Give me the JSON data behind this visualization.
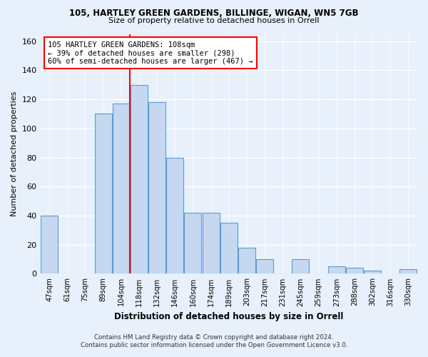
{
  "title1": "105, HARTLEY GREEN GARDENS, BILLINGE, WIGAN, WN5 7GB",
  "title2": "Size of property relative to detached houses in Orrell",
  "xlabel": "Distribution of detached houses by size in Orrell",
  "ylabel": "Number of detached properties",
  "categories": [
    "47sqm",
    "61sqm",
    "75sqm",
    "89sqm",
    "104sqm",
    "118sqm",
    "132sqm",
    "146sqm",
    "160sqm",
    "174sqm",
    "189sqm",
    "203sqm",
    "217sqm",
    "231sqm",
    "245sqm",
    "259sqm",
    "273sqm",
    "288sqm",
    "302sqm",
    "316sqm",
    "330sqm"
  ],
  "values": [
    40,
    0,
    0,
    110,
    117,
    130,
    118,
    80,
    42,
    42,
    35,
    18,
    10,
    0,
    10,
    0,
    5,
    4,
    2,
    0,
    3
  ],
  "bar_color": "#c5d8f0",
  "bar_edge_color": "#5b9bd5",
  "vline_color": "red",
  "vline_x_index": 4.5,
  "annotation_line1": "105 HARTLEY GREEN GARDENS: 108sqm",
  "annotation_line2": "← 39% of detached houses are smaller (298)",
  "annotation_line3": "60% of semi-detached houses are larger (467) →",
  "annotation_box_color": "white",
  "annotation_box_edge_color": "red",
  "ylim": [
    0,
    165
  ],
  "yticks": [
    0,
    20,
    40,
    60,
    80,
    100,
    120,
    140,
    160
  ],
  "footnote1": "Contains HM Land Registry data © Crown copyright and database right 2024.",
  "footnote2": "Contains public sector information licensed under the Open Government Licence v3.0.",
  "background_color": "#e8f0fb",
  "plot_background": "#e8f0fb"
}
